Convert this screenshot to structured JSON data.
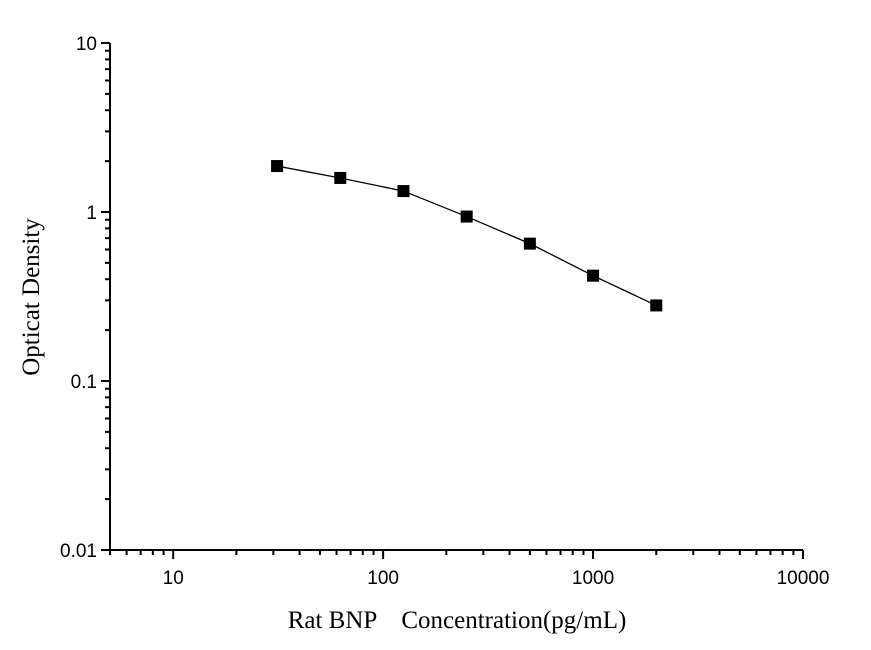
{
  "chart_data": {
    "type": "line",
    "title": "",
    "xlabel": "Rat BNP    Concentration(pg/mL)",
    "ylabel": "Opticat Density",
    "xscale": "log",
    "yscale": "log",
    "xlim": [
      5,
      10000
    ],
    "ylim": [
      0.01,
      10
    ],
    "xticks": [
      10,
      100,
      1000,
      10000
    ],
    "xtick_labels": [
      "10",
      "100",
      "1000",
      "10000"
    ],
    "yticks": [
      0.01,
      0.1,
      1,
      10
    ],
    "ytick_labels": [
      "0.01",
      "0.1",
      "1",
      "10"
    ],
    "grid": false,
    "marker": "square",
    "color": "#000000",
    "series": [
      {
        "x": [
          31.25,
          62.5,
          125,
          250,
          500,
          1000,
          2000
        ],
        "y": [
          1.87,
          1.59,
          1.33,
          0.94,
          0.65,
          0.42,
          0.28
        ]
      }
    ]
  }
}
